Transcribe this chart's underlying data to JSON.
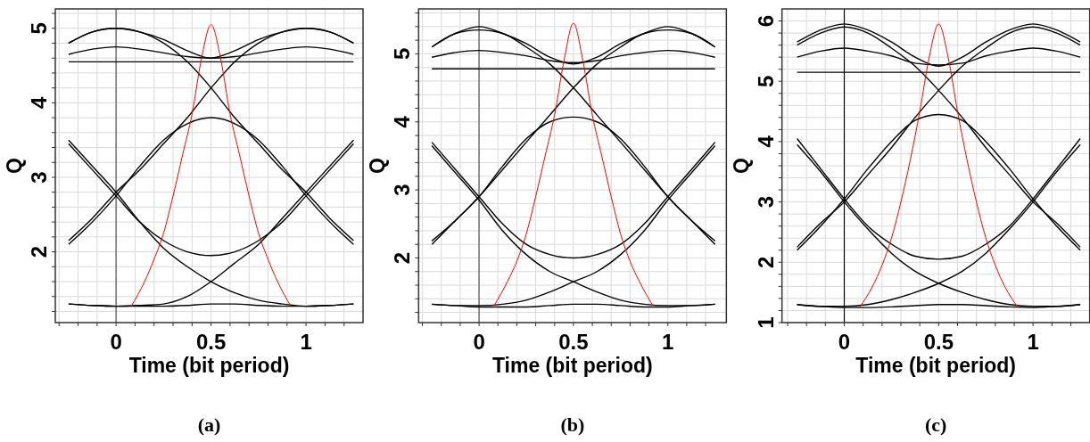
{
  "chart_data": [
    {
      "type": "line",
      "xlabel": "Time (bit period)",
      "ylabel": "Q",
      "annotations": [
        "(a)"
      ],
      "grid": true,
      "line_style": "solid",
      "xlim": [
        -0.32,
        1.3
      ],
      "ylim": [
        1.05,
        5.26
      ],
      "xticks": [
        {
          "value": -0.3,
          "label": null
        },
        {
          "value": -0.2,
          "label": null
        },
        {
          "value": -0.1,
          "label": null
        },
        0,
        {
          "value": 0.1,
          "label": null
        },
        {
          "value": 0.2,
          "label": null
        },
        {
          "value": 0.3,
          "label": null
        },
        {
          "value": 0.4,
          "label": null
        },
        0.5,
        {
          "value": 0.6,
          "label": null
        },
        {
          "value": 0.7,
          "label": null
        },
        {
          "value": 0.8,
          "label": null
        },
        {
          "value": 0.9,
          "label": null
        },
        1,
        {
          "value": 1.1,
          "label": null
        },
        {
          "value": 1.2,
          "label": null
        }
      ],
      "yticks": [
        {
          "value": 1.2,
          "label": null
        },
        {
          "value": 1.4,
          "label": null
        },
        {
          "value": 1.6,
          "label": null
        },
        {
          "value": 1.8,
          "label": null
        },
        2,
        {
          "value": 2.2,
          "label": null
        },
        {
          "value": 2.4,
          "label": null
        },
        {
          "value": 2.6,
          "label": null
        },
        {
          "value": 2.8,
          "label": null
        },
        3,
        {
          "value": 3.2,
          "label": null
        },
        {
          "value": 3.4,
          "label": null
        },
        {
          "value": 3.6,
          "label": null
        },
        {
          "value": 3.8,
          "label": null
        },
        4,
        {
          "value": 4.2,
          "label": null
        },
        {
          "value": 4.4,
          "label": null
        },
        {
          "value": 4.6,
          "label": null
        },
        {
          "value": 4.8,
          "label": null
        },
        5,
        {
          "value": 5.2,
          "label": null
        }
      ],
      "ref_lines": [
        {
          "axis": "x",
          "value": 0,
          "color": "#555555"
        }
      ],
      "x": [
        -0.25,
        -0.125,
        0,
        0.125,
        0.25,
        0.375,
        0.5,
        0.625,
        0.75,
        0.875,
        1,
        1.125,
        1.25
      ],
      "series": [
        {
          "color": "#000000",
          "values": [
            4.8,
            4.95,
            5.0,
            4.95,
            4.85,
            4.7,
            4.6,
            4.7,
            4.85,
            4.95,
            5.0,
            4.95,
            4.8
          ]
        },
        {
          "color": "#000000",
          "values": [
            4.65,
            4.72,
            4.75,
            4.72,
            4.67,
            4.62,
            4.6,
            4.62,
            4.67,
            4.72,
            4.75,
            4.72,
            4.65
          ]
        },
        {
          "color": "#000000",
          "values": [
            4.55,
            4.55,
            4.55,
            4.55,
            4.55,
            4.55,
            4.55,
            4.55,
            4.55,
            4.55,
            4.55,
            4.55,
            4.55
          ]
        },
        {
          "color": "#000000",
          "values": [
            1.3,
            1.28,
            1.27,
            1.27,
            1.27,
            1.28,
            1.3,
            1.3,
            1.28,
            1.27,
            1.27,
            1.28,
            1.3
          ]
        },
        {
          "color": "#000000",
          "values": [
            2.1,
            2.4,
            2.75,
            3.15,
            3.5,
            3.72,
            3.8,
            3.72,
            3.5,
            3.15,
            2.75,
            2.4,
            2.1
          ]
        },
        {
          "color": "#000000",
          "values": [
            3.45,
            3.1,
            2.75,
            2.4,
            2.15,
            2.0,
            1.95,
            2.0,
            2.15,
            2.4,
            2.75,
            3.1,
            3.45
          ]
        },
        {
          "color": "#000000",
          "values": [
            2.15,
            2.45,
            2.8,
            3.1,
            3.45,
            3.8,
            4.2,
            4.55,
            4.8,
            4.95,
            5.0,
            4.95,
            4.8
          ]
        },
        {
          "color": "#000000",
          "values": [
            4.8,
            4.95,
            5.0,
            4.95,
            4.8,
            4.55,
            4.2,
            3.8,
            3.45,
            3.1,
            2.8,
            2.45,
            2.15
          ]
        },
        {
          "color": "#000000",
          "values": [
            3.5,
            3.15,
            2.8,
            2.4,
            2.05,
            1.8,
            1.6,
            1.45,
            1.35,
            1.3,
            1.27,
            1.28,
            1.3
          ]
        },
        {
          "color": "#000000",
          "values": [
            1.3,
            1.28,
            1.27,
            1.28,
            1.3,
            1.4,
            1.6,
            1.85,
            2.1,
            2.45,
            2.8,
            3.15,
            3.5
          ]
        },
        {
          "color": "#ff0000",
          "x": [
            0.08,
            0.15,
            0.2,
            0.25,
            0.3,
            0.35,
            0.4,
            0.45,
            0.5,
            0.55,
            0.6,
            0.65,
            0.7,
            0.75,
            0.8,
            0.85,
            0.92
          ],
          "values": [
            1.27,
            1.6,
            1.9,
            2.25,
            2.75,
            3.3,
            3.85,
            4.6,
            5.05,
            4.6,
            3.85,
            3.3,
            2.75,
            2.25,
            1.9,
            1.6,
            1.27
          ]
        }
      ]
    },
    {
      "type": "line",
      "xlabel": "Time (bit period)",
      "ylabel": "Q",
      "annotations": [
        "(b)"
      ],
      "grid": true,
      "line_style": "solid",
      "xlim": [
        -0.32,
        1.31
      ],
      "ylim": [
        1.05,
        5.66
      ],
      "xticks": [
        {
          "value": -0.3,
          "label": null
        },
        {
          "value": -0.2,
          "label": null
        },
        {
          "value": -0.1,
          "label": null
        },
        0,
        {
          "value": 0.1,
          "label": null
        },
        {
          "value": 0.2,
          "label": null
        },
        {
          "value": 0.3,
          "label": null
        },
        {
          "value": 0.4,
          "label": null
        },
        0.5,
        {
          "value": 0.6,
          "label": null
        },
        {
          "value": 0.7,
          "label": null
        },
        {
          "value": 0.8,
          "label": null
        },
        {
          "value": 0.9,
          "label": null
        },
        1,
        {
          "value": 1.1,
          "label": null
        },
        {
          "value": 1.2,
          "label": null
        }
      ],
      "yticks": [
        {
          "value": 1.2,
          "label": null
        },
        {
          "value": 1.4,
          "label": null
        },
        {
          "value": 1.6,
          "label": null
        },
        {
          "value": 1.8,
          "label": null
        },
        2,
        {
          "value": 2.2,
          "label": null
        },
        {
          "value": 2.4,
          "label": null
        },
        {
          "value": 2.6,
          "label": null
        },
        {
          "value": 2.8,
          "label": null
        },
        3,
        {
          "value": 3.2,
          "label": null
        },
        {
          "value": 3.4,
          "label": null
        },
        {
          "value": 3.6,
          "label": null
        },
        {
          "value": 3.8,
          "label": null
        },
        4,
        {
          "value": 4.2,
          "label": null
        },
        {
          "value": 4.4,
          "label": null
        },
        {
          "value": 4.6,
          "label": null
        },
        {
          "value": 4.8,
          "label": null
        },
        5,
        {
          "value": 5.2,
          "label": null
        },
        {
          "value": 5.4,
          "label": null
        },
        {
          "value": 5.6,
          "label": null
        }
      ],
      "ref_lines": [
        {
          "axis": "x",
          "value": 0,
          "color": "#555555"
        }
      ],
      "x": [
        -0.25,
        -0.125,
        0,
        0.125,
        0.25,
        0.375,
        0.5,
        0.625,
        0.75,
        0.875,
        1,
        1.125,
        1.25
      ],
      "series": [
        {
          "color": "#000000",
          "values": [
            5.1,
            5.3,
            5.4,
            5.3,
            5.15,
            4.95,
            4.85,
            4.95,
            5.15,
            5.3,
            5.4,
            5.3,
            5.1
          ]
        },
        {
          "color": "#000000",
          "values": [
            4.95,
            5.02,
            5.05,
            5.02,
            4.97,
            4.9,
            4.87,
            4.9,
            4.97,
            5.02,
            5.05,
            5.02,
            4.95
          ]
        },
        {
          "color": "#000000",
          "values": [
            4.78,
            4.78,
            4.78,
            4.78,
            4.78,
            4.78,
            4.78,
            4.78,
            4.78,
            4.78,
            4.78,
            4.78,
            4.78
          ]
        },
        {
          "color": "#000000",
          "values": [
            1.32,
            1.3,
            1.28,
            1.28,
            1.28,
            1.3,
            1.32,
            1.32,
            1.3,
            1.28,
            1.28,
            1.3,
            1.32
          ]
        },
        {
          "color": "#000000",
          "values": [
            2.2,
            2.55,
            2.9,
            3.35,
            3.75,
            4.0,
            4.07,
            4.0,
            3.75,
            3.35,
            2.9,
            2.55,
            2.2
          ]
        },
        {
          "color": "#000000",
          "values": [
            3.7,
            3.3,
            2.9,
            2.5,
            2.2,
            2.05,
            2.0,
            2.05,
            2.2,
            2.5,
            2.9,
            3.3,
            3.7
          ]
        },
        {
          "color": "#000000",
          "values": [
            2.25,
            2.55,
            2.9,
            3.3,
            3.7,
            4.1,
            4.5,
            4.85,
            5.1,
            5.3,
            5.35,
            5.3,
            5.1
          ]
        },
        {
          "color": "#000000",
          "values": [
            5.1,
            5.3,
            5.35,
            5.3,
            5.1,
            4.85,
            4.5,
            4.1,
            3.7,
            3.3,
            2.9,
            2.55,
            2.25
          ]
        },
        {
          "color": "#000000",
          "values": [
            3.65,
            3.25,
            2.85,
            2.4,
            2.05,
            1.8,
            1.65,
            1.5,
            1.38,
            1.32,
            1.3,
            1.3,
            1.32
          ]
        },
        {
          "color": "#000000",
          "values": [
            1.32,
            1.3,
            1.3,
            1.32,
            1.38,
            1.5,
            1.65,
            1.8,
            2.05,
            2.4,
            2.85,
            3.25,
            3.65
          ]
        },
        {
          "color": "#ff0000",
          "x": [
            0.08,
            0.15,
            0.2,
            0.25,
            0.3,
            0.35,
            0.4,
            0.45,
            0.5,
            0.55,
            0.6,
            0.65,
            0.7,
            0.75,
            0.8,
            0.85,
            0.92
          ],
          "values": [
            1.3,
            1.65,
            1.95,
            2.35,
            2.9,
            3.5,
            4.1,
            4.9,
            5.45,
            4.9,
            4.1,
            3.5,
            2.9,
            2.35,
            1.95,
            1.65,
            1.3
          ]
        }
      ]
    },
    {
      "type": "line",
      "xlabel": "Time (bit period)",
      "ylabel": "Q",
      "annotations": [
        "(c)"
      ],
      "grid": true,
      "line_style": "solid",
      "xlim": [
        -0.33,
        1.3
      ],
      "ylim": [
        1,
        6.2
      ],
      "xticks": [
        {
          "value": -0.3,
          "label": null
        },
        {
          "value": -0.2,
          "label": null
        },
        {
          "value": -0.1,
          "label": null
        },
        0,
        {
          "value": 0.1,
          "label": null
        },
        {
          "value": 0.2,
          "label": null
        },
        {
          "value": 0.3,
          "label": null
        },
        {
          "value": 0.4,
          "label": null
        },
        0.5,
        {
          "value": 0.6,
          "label": null
        },
        {
          "value": 0.7,
          "label": null
        },
        {
          "value": 0.8,
          "label": null
        },
        {
          "value": 0.9,
          "label": null
        },
        1,
        {
          "value": 1.1,
          "label": null
        },
        {
          "value": 1.2,
          "label": null
        }
      ],
      "yticks": [
        1,
        {
          "value": 1.2,
          "label": null
        },
        {
          "value": 1.4,
          "label": null
        },
        {
          "value": 1.6,
          "label": null
        },
        {
          "value": 1.8,
          "label": null
        },
        2,
        {
          "value": 2.2,
          "label": null
        },
        {
          "value": 2.4,
          "label": null
        },
        {
          "value": 2.6,
          "label": null
        },
        {
          "value": 2.8,
          "label": null
        },
        3,
        {
          "value": 3.2,
          "label": null
        },
        {
          "value": 3.4,
          "label": null
        },
        {
          "value": 3.6,
          "label": null
        },
        {
          "value": 3.8,
          "label": null
        },
        4,
        {
          "value": 4.2,
          "label": null
        },
        {
          "value": 4.4,
          "label": null
        },
        {
          "value": 4.6,
          "label": null
        },
        {
          "value": 4.8,
          "label": null
        },
        5,
        {
          "value": 5.2,
          "label": null
        },
        {
          "value": 5.4,
          "label": null
        },
        {
          "value": 5.6,
          "label": null
        },
        {
          "value": 5.8,
          "label": null
        },
        6
      ],
      "ref_lines": [
        {
          "axis": "x",
          "value": 0,
          "color": "#000000"
        }
      ],
      "x": [
        -0.25,
        -0.125,
        0,
        0.125,
        0.25,
        0.375,
        0.5,
        0.625,
        0.75,
        0.875,
        1,
        1.125,
        1.25
      ],
      "series": [
        {
          "color": "#000000",
          "values": [
            5.65,
            5.85,
            5.95,
            5.85,
            5.65,
            5.4,
            5.25,
            5.4,
            5.65,
            5.85,
            5.95,
            5.85,
            5.65
          ]
        },
        {
          "color": "#000000",
          "values": [
            5.4,
            5.5,
            5.55,
            5.5,
            5.42,
            5.3,
            5.27,
            5.3,
            5.42,
            5.5,
            5.55,
            5.5,
            5.4
          ]
        },
        {
          "color": "#000000",
          "values": [
            5.15,
            5.15,
            5.15,
            5.15,
            5.15,
            5.15,
            5.15,
            5.15,
            5.15,
            5.15,
            5.15,
            5.15,
            5.15
          ]
        },
        {
          "color": "#000000",
          "values": [
            1.3,
            1.27,
            1.25,
            1.25,
            1.26,
            1.28,
            1.3,
            1.3,
            1.28,
            1.26,
            1.25,
            1.27,
            1.3
          ]
        },
        {
          "color": "#000000",
          "values": [
            2.2,
            2.6,
            3.05,
            3.55,
            4.0,
            4.35,
            4.45,
            4.35,
            4.0,
            3.55,
            3.05,
            2.6,
            2.2
          ]
        },
        {
          "color": "#000000",
          "values": [
            4.05,
            3.55,
            3.05,
            2.6,
            2.3,
            2.1,
            2.05,
            2.1,
            2.3,
            2.6,
            3.05,
            3.55,
            4.05
          ]
        },
        {
          "color": "#000000",
          "values": [
            2.25,
            2.65,
            3.0,
            3.45,
            3.9,
            4.4,
            4.85,
            5.25,
            5.55,
            5.8,
            5.9,
            5.8,
            5.6
          ]
        },
        {
          "color": "#000000",
          "values": [
            5.6,
            5.8,
            5.9,
            5.8,
            5.55,
            5.25,
            4.85,
            4.4,
            3.9,
            3.45,
            3.0,
            2.65,
            2.25
          ]
        },
        {
          "color": "#000000",
          "values": [
            3.95,
            3.5,
            3.0,
            2.55,
            2.15,
            1.85,
            1.65,
            1.5,
            1.38,
            1.3,
            1.27,
            1.27,
            1.3
          ]
        },
        {
          "color": "#000000",
          "values": [
            1.3,
            1.27,
            1.27,
            1.3,
            1.38,
            1.5,
            1.65,
            1.85,
            2.15,
            2.55,
            3.0,
            3.5,
            3.95
          ]
        },
        {
          "color": "#ff0000",
          "x": [
            0.08,
            0.15,
            0.2,
            0.25,
            0.3,
            0.35,
            0.4,
            0.45,
            0.5,
            0.55,
            0.6,
            0.65,
            0.7,
            0.75,
            0.8,
            0.85,
            0.92
          ],
          "values": [
            1.25,
            1.6,
            1.95,
            2.4,
            3.0,
            3.7,
            4.5,
            5.4,
            5.95,
            5.4,
            4.5,
            3.7,
            3.0,
            2.4,
            1.95,
            1.6,
            1.25
          ]
        }
      ]
    }
  ]
}
